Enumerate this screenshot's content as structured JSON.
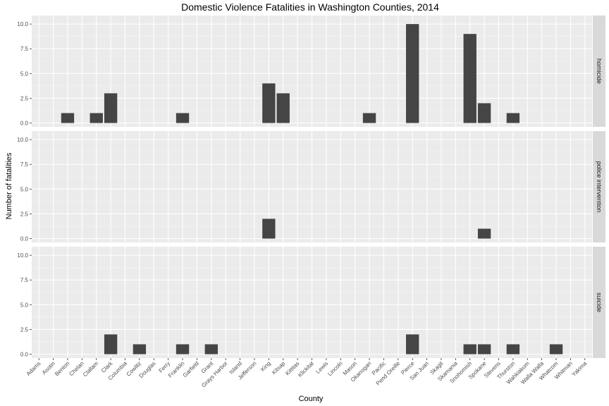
{
  "chart_data": {
    "type": "bar",
    "title": "Domestic Violence Fatalities in Washington Counties, 2014",
    "xlabel": "County",
    "ylabel": "Number of fatalities",
    "ylim": [
      0,
      10.4
    ],
    "yticks": [
      0.0,
      2.5,
      5.0,
      7.5,
      10.0
    ],
    "ytick_labels": [
      "0.0",
      "2.5",
      "5.0",
      "7.5",
      "10.0"
    ],
    "grid": true,
    "facet_placement": "right",
    "bar_color": "#454545",
    "panel_color": "#ebebeb",
    "strip_color": "#d9d9d9",
    "categories": [
      "Adams",
      "Asotin",
      "Benton",
      "Chelan",
      "Clallam",
      "Clark",
      "Columbia",
      "Cowlitz",
      "Douglas",
      "Ferry",
      "Franklin",
      "Garfield",
      "Grant",
      "Grays Harbor",
      "Island",
      "Jefferson",
      "King",
      "Kitsap",
      "Kittitas",
      "Klickitat",
      "Lewis",
      "Lincoln",
      "Mason",
      "Okanogan",
      "Pacific",
      "Pend Oreille",
      "Pierce",
      "San Juan",
      "Skagit",
      "Skamania",
      "Snohomish",
      "Spokane",
      "Stevens",
      "Thurston",
      "Wahkiakum",
      "Walla Walla",
      "Whatcom",
      "Whitman",
      "Yakima"
    ],
    "facets": [
      {
        "name": "homicide",
        "values": [
          0,
          0,
          1,
          0,
          1,
          3,
          0,
          0,
          0,
          0,
          1,
          0,
          0,
          0,
          0,
          0,
          4,
          3,
          0,
          0,
          0,
          0,
          0,
          1,
          0,
          0,
          10,
          0,
          0,
          0,
          9,
          2,
          0,
          1,
          0,
          0,
          0,
          0,
          0
        ]
      },
      {
        "name": "police intervention",
        "values": [
          0,
          0,
          0,
          0,
          0,
          0,
          0,
          0,
          0,
          0,
          0,
          0,
          0,
          0,
          0,
          0,
          2,
          0,
          0,
          0,
          0,
          0,
          0,
          0,
          0,
          0,
          0,
          0,
          0,
          0,
          0,
          1,
          0,
          0,
          0,
          0,
          0,
          0,
          0
        ]
      },
      {
        "name": "suicide",
        "values": [
          0,
          0,
          0,
          0,
          0,
          2,
          0,
          1,
          0,
          0,
          1,
          0,
          1,
          0,
          0,
          0,
          0,
          0,
          0,
          0,
          0,
          0,
          0,
          0,
          0,
          0,
          2,
          0,
          0,
          0,
          1,
          1,
          0,
          1,
          0,
          0,
          1,
          0,
          0
        ]
      }
    ]
  }
}
